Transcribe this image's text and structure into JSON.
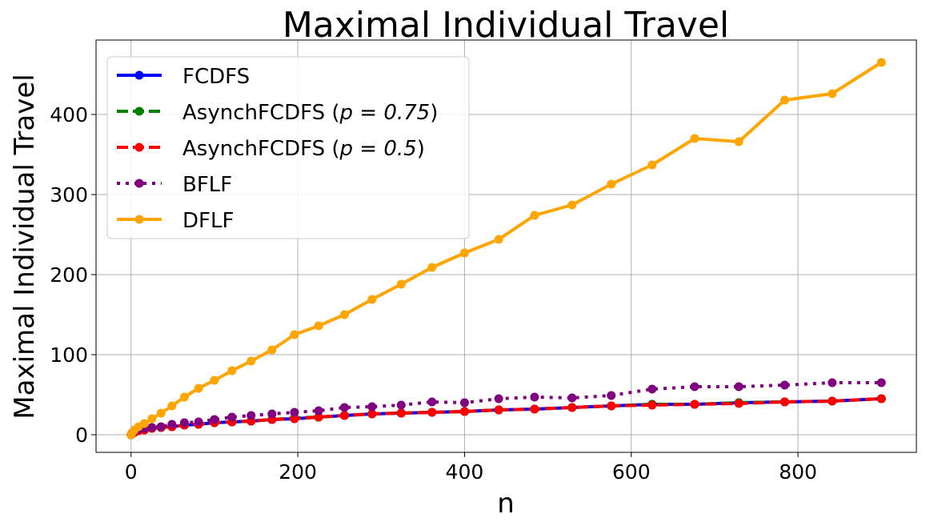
{
  "chart_data": {
    "type": "line",
    "title": "Maximal Individual Travel",
    "xlabel": "n",
    "ylabel": "Maximal Individual Travel",
    "xlim": [
      -42,
      942
    ],
    "ylim": [
      -22,
      493
    ],
    "xticks": [
      0,
      200,
      400,
      600,
      800
    ],
    "yticks": [
      0,
      100,
      200,
      300,
      400
    ],
    "grid": true,
    "legend_position": "top-left",
    "x": [
      0,
      1,
      4,
      9,
      16,
      25,
      36,
      49,
      64,
      81,
      100,
      121,
      144,
      169,
      196,
      225,
      256,
      289,
      324,
      361,
      400,
      441,
      484,
      529,
      576,
      625,
      676,
      729,
      784,
      841,
      900
    ],
    "series": [
      {
        "name": "FCDFS",
        "color": "#0000ff",
        "dash": "solid",
        "values": [
          0,
          1,
          3,
          5,
          6,
          8,
          9,
          10,
          12,
          13,
          15,
          16,
          17,
          19,
          20,
          22,
          24,
          26,
          27,
          28,
          29,
          31,
          32,
          34,
          36,
          38,
          38,
          40,
          41,
          42,
          45
        ]
      },
      {
        "name": "AsynchFCDFS (p = 0.75)",
        "color": "#008000",
        "dash": "dashed",
        "values": [
          0,
          1,
          3,
          5,
          6,
          8,
          9,
          10,
          12,
          13,
          15,
          16,
          17,
          19,
          21,
          22,
          24,
          26,
          27,
          28,
          29,
          31,
          32,
          34,
          36,
          38,
          38,
          40,
          41,
          42,
          45
        ]
      },
      {
        "name": "AsynchFCDFS (p = 0.5)",
        "color": "#ff0000",
        "dash": "dashed",
        "values": [
          0,
          1,
          3,
          5,
          6,
          8,
          9,
          10,
          12,
          13,
          15,
          16,
          17,
          19,
          20,
          22,
          24,
          26,
          27,
          28,
          29,
          31,
          32,
          34,
          36,
          37,
          38,
          39,
          41,
          42,
          45
        ]
      },
      {
        "name": "BFLF",
        "color": "#800080",
        "dash": "dotted",
        "values": [
          0,
          2,
          5,
          7,
          8,
          9,
          10,
          13,
          15,
          16,
          19,
          22,
          24,
          26,
          28,
          30,
          34,
          35,
          37,
          41,
          40,
          45,
          47,
          46,
          49,
          57,
          60,
          60,
          62,
          65,
          65
        ]
      },
      {
        "name": "DFLF",
        "color": "#ffa500",
        "dash": "solid",
        "values": [
          0,
          2,
          6,
          10,
          14,
          20,
          27,
          36,
          47,
          58,
          68,
          80,
          92,
          106,
          125,
          136,
          150,
          169,
          188,
          209,
          227,
          244,
          274,
          287,
          313,
          337,
          370,
          366,
          418,
          426,
          465
        ]
      }
    ],
    "legend_labels": [
      {
        "base": "FCDFS",
        "math": ""
      },
      {
        "base": "AsynchFCDFS (",
        "math": "p = 0.75",
        "end": ")"
      },
      {
        "base": "AsynchFCDFS (",
        "math": "p = 0.5",
        "end": ")"
      },
      {
        "base": "BFLF",
        "math": ""
      },
      {
        "base": "DFLF",
        "math": ""
      }
    ]
  }
}
